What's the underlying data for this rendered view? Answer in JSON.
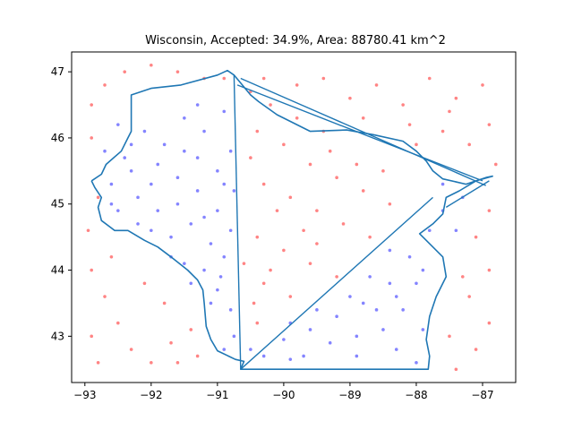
{
  "chart_data": {
    "type": "scatter",
    "title": "Wisconsin, Accepted: 34.9%, Area: 88780.41 km^2",
    "xlabel": "",
    "ylabel": "",
    "xlim": [
      -93.2,
      -86.5
    ],
    "ylim": [
      42.3,
      47.3
    ],
    "x_ticks": [
      -93,
      -92,
      -91,
      -90,
      -89,
      -88,
      -87
    ],
    "x_tick_labels": [
      "−93",
      "−92",
      "−91",
      "−90",
      "−89",
      "−88",
      "−87"
    ],
    "y_ticks": [
      43,
      44,
      45,
      46,
      47
    ],
    "y_tick_labels": [
      "43",
      "44",
      "45",
      "46",
      "47"
    ],
    "grid": false,
    "colors": {
      "accepted": "#5050ff",
      "rejected": "#ff5050",
      "boundary": "#1f77b4"
    },
    "series": [
      {
        "key": "accepted",
        "values": [
          [
            -92.7,
            45.8
          ],
          [
            -92.5,
            46.2
          ],
          [
            -92.3,
            45.9
          ],
          [
            -92.1,
            46.1
          ],
          [
            -91.8,
            45.9
          ],
          [
            -91.5,
            46.3
          ],
          [
            -91.2,
            46.1
          ],
          [
            -92.6,
            45.3
          ],
          [
            -92.3,
            45.5
          ],
          [
            -91.9,
            45.6
          ],
          [
            -91.6,
            45.4
          ],
          [
            -91.3,
            45.7
          ],
          [
            -91.0,
            45.5
          ],
          [
            -90.8,
            45.8
          ],
          [
            -92.5,
            44.9
          ],
          [
            -92.2,
            45.1
          ],
          [
            -91.9,
            44.9
          ],
          [
            -91.6,
            45.0
          ],
          [
            -91.3,
            45.2
          ],
          [
            -91.0,
            44.9
          ],
          [
            -90.75,
            45.2
          ],
          [
            -92.0,
            44.6
          ],
          [
            -91.7,
            44.5
          ],
          [
            -91.4,
            44.7
          ],
          [
            -91.1,
            44.4
          ],
          [
            -90.8,
            44.6
          ],
          [
            -91.5,
            44.1
          ],
          [
            -91.2,
            44.0
          ],
          [
            -90.9,
            44.2
          ],
          [
            -91.0,
            43.7
          ],
          [
            -90.8,
            43.4
          ],
          [
            -90.75,
            43.0
          ],
          [
            -92.4,
            45.7
          ],
          [
            -92.0,
            45.3
          ],
          [
            -91.5,
            45.8
          ],
          [
            -91.2,
            44.8
          ],
          [
            -90.9,
            45.3
          ],
          [
            -90.95,
            43.9
          ],
          [
            -91.3,
            46.5
          ],
          [
            -90.9,
            46.4
          ],
          [
            -92.6,
            45.0
          ],
          [
            -92.2,
            44.7
          ],
          [
            -91.7,
            44.2
          ],
          [
            -91.4,
            43.8
          ],
          [
            -91.1,
            43.5
          ],
          [
            -90.9,
            42.8
          ],
          [
            -90.5,
            42.8
          ],
          [
            -90.0,
            42.95
          ],
          [
            -89.6,
            43.1
          ],
          [
            -89.2,
            43.3
          ],
          [
            -88.8,
            43.5
          ],
          [
            -88.4,
            43.8
          ],
          [
            -88.1,
            44.2
          ],
          [
            -87.8,
            44.6
          ],
          [
            -89.7,
            42.7
          ],
          [
            -89.3,
            42.9
          ],
          [
            -88.9,
            43.0
          ],
          [
            -88.5,
            43.1
          ],
          [
            -88.2,
            43.4
          ],
          [
            -88.0,
            43.8
          ],
          [
            -88.6,
            43.4
          ],
          [
            -88.3,
            42.8
          ],
          [
            -88.9,
            42.7
          ],
          [
            -89.9,
            42.65
          ],
          [
            -90.3,
            42.7
          ],
          [
            -88.0,
            42.6
          ],
          [
            -87.9,
            43.1
          ],
          [
            -88.3,
            43.6
          ],
          [
            -87.9,
            44.0
          ],
          [
            -87.6,
            44.9
          ],
          [
            -87.3,
            45.1
          ],
          [
            -87.6,
            45.3
          ],
          [
            -87.4,
            44.6
          ],
          [
            -88.4,
            44.3
          ],
          [
            -88.7,
            43.9
          ],
          [
            -89.0,
            43.6
          ],
          [
            -89.5,
            43.4
          ],
          [
            -89.9,
            43.2
          ]
        ]
      },
      {
        "key": "rejected",
        "values": [
          [
            -92.9,
            46.5
          ],
          [
            -92.7,
            46.8
          ],
          [
            -92.4,
            47.0
          ],
          [
            -92.0,
            47.1
          ],
          [
            -91.6,
            47.0
          ],
          [
            -91.2,
            46.9
          ],
          [
            -90.9,
            46.9
          ],
          [
            -92.9,
            44.0
          ],
          [
            -92.7,
            43.6
          ],
          [
            -92.5,
            43.2
          ],
          [
            -92.3,
            42.8
          ],
          [
            -92.0,
            42.6
          ],
          [
            -91.7,
            42.9
          ],
          [
            -91.4,
            43.1
          ],
          [
            -91.8,
            43.5
          ],
          [
            -92.1,
            43.8
          ],
          [
            -92.8,
            42.6
          ],
          [
            -92.9,
            43.0
          ],
          [
            -92.6,
            44.2
          ],
          [
            -91.6,
            42.6
          ],
          [
            -91.3,
            42.7
          ],
          [
            -90.5,
            46.7
          ],
          [
            -90.2,
            46.5
          ],
          [
            -89.8,
            46.8
          ],
          [
            -89.4,
            46.9
          ],
          [
            -89.0,
            46.6
          ],
          [
            -88.6,
            46.8
          ],
          [
            -88.2,
            46.5
          ],
          [
            -87.8,
            46.9
          ],
          [
            -87.4,
            46.6
          ],
          [
            -87.0,
            46.8
          ],
          [
            -86.9,
            46.2
          ],
          [
            -87.2,
            45.9
          ],
          [
            -87.6,
            46.1
          ],
          [
            -88.0,
            45.9
          ],
          [
            -86.8,
            45.6
          ],
          [
            -86.9,
            44.9
          ],
          [
            -87.1,
            44.5
          ],
          [
            -86.9,
            44.0
          ],
          [
            -87.2,
            43.6
          ],
          [
            -86.9,
            43.2
          ],
          [
            -87.1,
            42.8
          ],
          [
            -87.4,
            42.5
          ],
          [
            -87.5,
            43.0
          ],
          [
            -87.3,
            43.9
          ],
          [
            -90.4,
            46.1
          ],
          [
            -90.0,
            45.9
          ],
          [
            -89.6,
            45.6
          ],
          [
            -89.2,
            45.4
          ],
          [
            -88.8,
            45.2
          ],
          [
            -88.4,
            45.0
          ],
          [
            -90.3,
            45.3
          ],
          [
            -89.9,
            45.1
          ],
          [
            -89.5,
            44.9
          ],
          [
            -89.1,
            44.7
          ],
          [
            -88.7,
            44.5
          ],
          [
            -90.4,
            44.5
          ],
          [
            -90.0,
            44.3
          ],
          [
            -89.6,
            44.1
          ],
          [
            -89.2,
            43.9
          ],
          [
            -90.3,
            43.8
          ],
          [
            -89.9,
            43.6
          ],
          [
            -90.4,
            43.2
          ],
          [
            -90.1,
            44.9
          ],
          [
            -89.7,
            44.6
          ],
          [
            -89.3,
            45.8
          ],
          [
            -88.9,
            45.6
          ],
          [
            -88.5,
            45.5
          ],
          [
            -89.8,
            46.3
          ],
          [
            -89.4,
            46.1
          ],
          [
            -88.8,
            46.3
          ],
          [
            -90.5,
            45.7
          ],
          [
            -90.2,
            44.0
          ],
          [
            -89.5,
            44.4
          ],
          [
            -90.3,
            46.9
          ],
          [
            -92.9,
            46.0
          ],
          [
            -92.8,
            45.1
          ],
          [
            -90.6,
            44.1
          ],
          [
            -90.45,
            43.5
          ],
          [
            -92.95,
            44.6
          ],
          [
            -88.1,
            46.2
          ],
          [
            -87.5,
            46.4
          ]
        ]
      }
    ],
    "boundary": {
      "points": [
        [
          -92.9,
          45.35
        ],
        [
          -92.75,
          45.45
        ],
        [
          -92.68,
          45.6
        ],
        [
          -92.45,
          45.8
        ],
        [
          -92.35,
          46.0
        ],
        [
          -92.3,
          46.1
        ],
        [
          -92.3,
          46.65
        ],
        [
          -92.0,
          46.75
        ],
        [
          -91.55,
          46.8
        ],
        [
          -91.0,
          46.95
        ],
        [
          -90.85,
          47.02
        ],
        [
          -90.75,
          46.95
        ],
        [
          -90.5,
          46.65
        ],
        [
          -90.38,
          46.55
        ],
        [
          -90.1,
          46.35
        ],
        [
          -89.6,
          46.1
        ],
        [
          -89.05,
          46.12
        ],
        [
          -88.65,
          46.05
        ],
        [
          -88.2,
          45.95
        ],
        [
          -88.0,
          45.8
        ],
        [
          -87.85,
          45.65
        ],
        [
          -87.75,
          45.5
        ],
        [
          -87.6,
          45.38
        ],
        [
          -87.25,
          45.3
        ],
        [
          -86.95,
          45.4
        ],
        [
          -86.85,
          45.42
        ],
        [
          -87.1,
          45.35
        ],
        [
          -87.35,
          45.2
        ],
        [
          -87.55,
          45.1
        ],
        [
          -87.6,
          44.85
        ],
        [
          -87.75,
          44.7
        ],
        [
          -87.95,
          44.55
        ],
        [
          -87.85,
          44.45
        ],
        [
          -87.6,
          44.2
        ],
        [
          -87.55,
          43.9
        ],
        [
          -87.7,
          43.6
        ],
        [
          -87.8,
          43.3
        ],
        [
          -87.85,
          42.95
        ],
        [
          -87.8,
          42.7
        ],
        [
          -87.82,
          42.5
        ],
        [
          -88.3,
          42.5
        ],
        [
          -89.0,
          42.5
        ],
        [
          -89.6,
          42.5
        ],
        [
          -90.3,
          42.5
        ],
        [
          -90.65,
          42.5
        ],
        [
          -90.6,
          42.62
        ],
        [
          -90.73,
          42.65
        ],
        [
          -91.0,
          42.78
        ],
        [
          -91.1,
          42.95
        ],
        [
          -91.17,
          43.15
        ],
        [
          -91.2,
          43.5
        ],
        [
          -91.22,
          43.7
        ],
        [
          -91.3,
          43.85
        ],
        [
          -91.45,
          44.0
        ],
        [
          -91.7,
          44.2
        ],
        [
          -91.9,
          44.35
        ],
        [
          -92.1,
          44.45
        ],
        [
          -92.35,
          44.6
        ],
        [
          -92.55,
          44.6
        ],
        [
          -92.75,
          44.75
        ],
        [
          -92.8,
          44.95
        ],
        [
          -92.75,
          45.1
        ],
        [
          -92.85,
          45.25
        ],
        [
          -92.9,
          45.35
        ]
      ]
    },
    "spurs": [
      {
        "points": [
          [
            -90.75,
            46.95
          ],
          [
            -90.65,
            42.5
          ]
        ]
      },
      {
        "points": [
          [
            -90.65,
            42.5
          ],
          [
            -87.75,
            45.1
          ]
        ]
      },
      {
        "points": [
          [
            -90.7,
            46.8
          ],
          [
            -87.0,
            45.35
          ]
        ]
      },
      {
        "points": [
          [
            -90.65,
            46.9
          ],
          [
            -86.95,
            45.28
          ]
        ]
      },
      {
        "points": [
          [
            -87.55,
            44.95
          ],
          [
            -86.9,
            45.35
          ]
        ]
      }
    ]
  }
}
